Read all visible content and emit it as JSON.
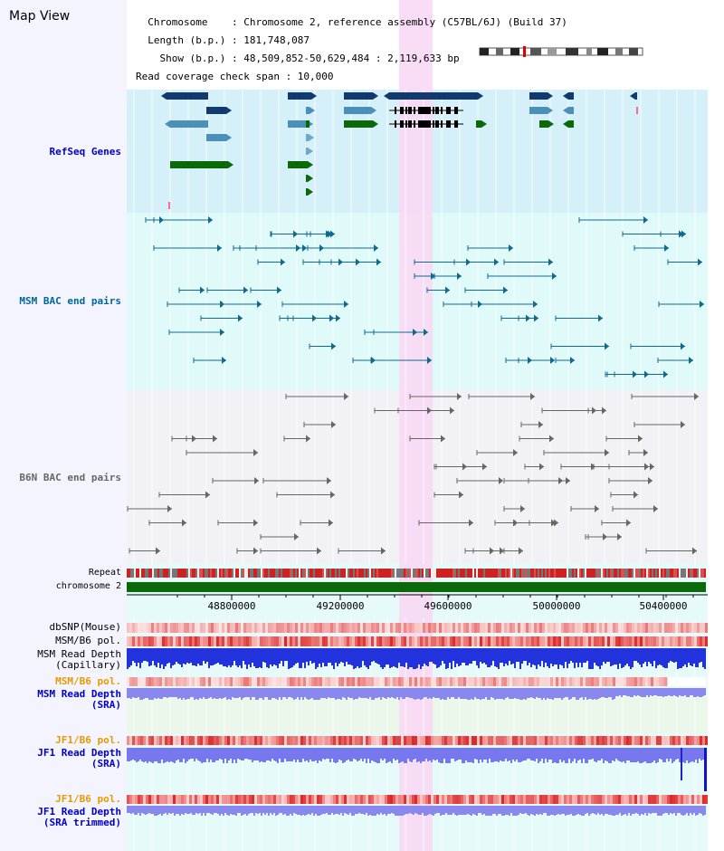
{
  "header": {
    "title": "Map View",
    "info_lines": [
      "  Chromosome    : Chromosome 2, reference assembly (C57BL/6J) (Build 37)",
      "  Length (b.p.) : 181,748,087",
      "    Show (b.p.) : 48,509,852-50,629,484 : 2,119,633 bp",
      "Read coverage check span : 10,000"
    ]
  },
  "tracks": {
    "refseq": {
      "label": "RefSeq Genes",
      "color": "#0000cc"
    },
    "msm_bac": {
      "label": "MSM BAC end pairs",
      "color": "#006699"
    },
    "b6n_bac": {
      "label": "B6N BAC end pairs",
      "color": "#666666"
    },
    "repeat": {
      "label": "Repeat"
    },
    "chromosome": {
      "label": "chromosome 2"
    },
    "dbsnp": {
      "label": "dbSNP(Mouse)"
    },
    "msm_b6_pol_1": {
      "label": "MSM/B6 pol."
    },
    "msm_read_depth_cap": {
      "line1": "MSM Read Depth",
      "line2": "(Capillary)"
    },
    "msm_b6_pol_2": {
      "label": "MSM/B6 pol."
    },
    "msm_read_depth_sra": {
      "line1": "MSM Read Depth",
      "line2": "(SRA)"
    },
    "jf1_b6_pol_1": {
      "label": "JF1/B6 pol."
    },
    "jf1_read_depth_sra": {
      "line1": "JF1 Read Depth",
      "line2": "(SRA)"
    },
    "jf1_b6_pol_2": {
      "label": "JF1/B6 pol."
    },
    "jf1_read_depth_trim": {
      "line1": "JF1 Read Depth",
      "line2": "(SRA trimmed)"
    }
  },
  "axis": {
    "ticks": [
      "48800000",
      "49200000",
      "49600000",
      "50000000",
      "50400000"
    ]
  },
  "colors": {
    "refseq_bg": "#d6f0fa",
    "msm_bac_bg": "#e0fafa",
    "b6n_bac_bg": "#f2f2f6",
    "highlight": "#f8d8f4",
    "gene_dark": "#123a6e",
    "gene_light": "#4a90b8",
    "gene_green": "#0a6a0a",
    "chrom_green": "#0a6a0a",
    "orange_label": "#e69a00"
  }
}
